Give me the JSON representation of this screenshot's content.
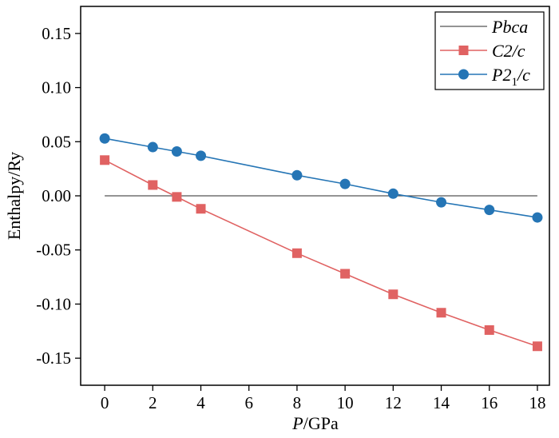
{
  "chart_data": {
    "type": "line",
    "xlabel_italic": "P",
    "xlabel_rest": "/GPa",
    "ylabel": "Enthalpy/Ry",
    "xlim": [
      -1,
      18.5
    ],
    "ylim": [
      -0.175,
      0.175
    ],
    "x_ticks": [
      0,
      2,
      4,
      6,
      8,
      10,
      12,
      14,
      16,
      18
    ],
    "x_tick_labels": [
      "0",
      "2",
      "4",
      "6",
      "8",
      "10",
      "12",
      "14",
      "16",
      "18"
    ],
    "y_ticks": [
      0.15,
      0.1,
      0.05,
      0.0,
      -0.05,
      -0.1,
      -0.15
    ],
    "y_tick_labels": [
      "0.15",
      "0.10",
      "0.05",
      "0.00",
      "-0.05",
      "-0.10",
      "-0.15"
    ],
    "legend_position": "top-right",
    "series": [
      {
        "name": "Pbca",
        "legend_parts": [
          {
            "t": "Pbca",
            "sub": false
          }
        ],
        "color": "#555555",
        "marker": "none",
        "x": [
          0,
          18
        ],
        "y": [
          0.0,
          0.0
        ]
      },
      {
        "name": "C2/c",
        "legend_parts": [
          {
            "t": "C2/c",
            "sub": false
          }
        ],
        "color": "#e06262",
        "marker": "square",
        "x": [
          0,
          2,
          3,
          4,
          8,
          10,
          12,
          14,
          16,
          18
        ],
        "y": [
          0.033,
          0.01,
          -0.001,
          -0.012,
          -0.053,
          -0.072,
          -0.091,
          -0.108,
          -0.124,
          -0.139
        ]
      },
      {
        "name": "P21/c",
        "legend_parts": [
          {
            "t": "P2",
            "sub": false
          },
          {
            "t": "1",
            "sub": true
          },
          {
            "t": "/c",
            "sub": false
          }
        ],
        "color": "#2575b5",
        "marker": "circle",
        "x": [
          0,
          2,
          3,
          4,
          8,
          10,
          12,
          14,
          16,
          18
        ],
        "y": [
          0.053,
          0.045,
          0.041,
          0.037,
          0.019,
          0.011,
          0.002,
          -0.006,
          -0.013,
          -0.02
        ]
      }
    ]
  }
}
